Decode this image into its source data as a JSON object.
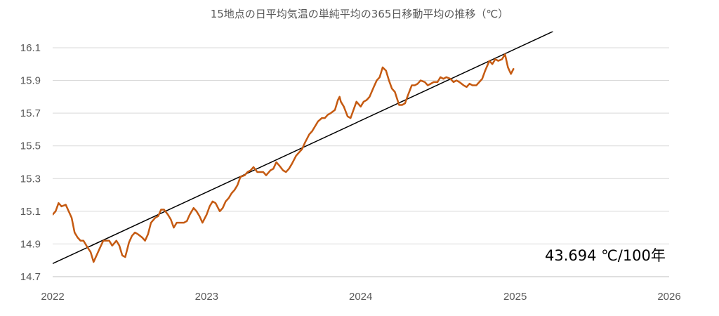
{
  "chart_data": {
    "type": "line",
    "title": "15地点の日平均気温の単純平均の365日移動平均の推移（℃）",
    "xlim": [
      "2022-01-01",
      "2026-01-01"
    ],
    "ylim": [
      14.7,
      16.2
    ],
    "x_ticks": [
      "2022",
      "2023",
      "2024",
      "2025",
      "2026"
    ],
    "y_ticks": [
      14.7,
      14.9,
      15.1,
      15.3,
      15.5,
      15.7,
      15.9,
      16.1
    ],
    "grid": true,
    "legend": "none",
    "series": [
      {
        "color": "#C55A11",
        "x": [
          "2022-01-01",
          "2022-01-08",
          "2022-01-15",
          "2022-01-22",
          "2022-02-01",
          "2022-02-08",
          "2022-02-15",
          "2022-02-22",
          "2022-03-01",
          "2022-03-08",
          "2022-03-15",
          "2022-03-22",
          "2022-04-01",
          "2022-04-08",
          "2022-04-15",
          "2022-04-22",
          "2022-05-01",
          "2022-05-08",
          "2022-05-15",
          "2022-05-22",
          "2022-06-01",
          "2022-06-08",
          "2022-06-15",
          "2022-06-22",
          "2022-07-01",
          "2022-07-08",
          "2022-07-15",
          "2022-07-22",
          "2022-08-01",
          "2022-08-08",
          "2022-08-15",
          "2022-08-22",
          "2022-09-01",
          "2022-09-08",
          "2022-09-15",
          "2022-09-22",
          "2022-10-01",
          "2022-10-08",
          "2022-10-15",
          "2022-10-22",
          "2022-11-01",
          "2022-11-08",
          "2022-11-15",
          "2022-11-22",
          "2022-12-01",
          "2022-12-08",
          "2022-12-15",
          "2022-12-22",
          "2023-01-01",
          "2023-01-08",
          "2023-01-15",
          "2023-01-22",
          "2023-02-01",
          "2023-02-08",
          "2023-02-15",
          "2023-02-22",
          "2023-03-01",
          "2023-03-08",
          "2023-03-15",
          "2023-03-22",
          "2023-04-01",
          "2023-04-08",
          "2023-04-15",
          "2023-04-22",
          "2023-05-01",
          "2023-05-08",
          "2023-05-15",
          "2023-05-22",
          "2023-06-01",
          "2023-06-08",
          "2023-06-15",
          "2023-06-22",
          "2023-07-01",
          "2023-07-08",
          "2023-07-15",
          "2023-07-22",
          "2023-08-01",
          "2023-08-08",
          "2023-08-15",
          "2023-08-22",
          "2023-09-01",
          "2023-09-08",
          "2023-09-15",
          "2023-09-22",
          "2023-10-01",
          "2023-10-08",
          "2023-10-15",
          "2023-10-22",
          "2023-11-01",
          "2023-11-08",
          "2023-11-12",
          "2023-11-15",
          "2023-11-22",
          "2023-12-01",
          "2023-12-08",
          "2023-12-15",
          "2023-12-22",
          "2024-01-01",
          "2024-01-08",
          "2024-01-15",
          "2024-01-22",
          "2024-02-01",
          "2024-02-08",
          "2024-02-15",
          "2024-02-22",
          "2024-03-01",
          "2024-03-08",
          "2024-03-15",
          "2024-03-22",
          "2024-04-01",
          "2024-04-08",
          "2024-04-15",
          "2024-04-22",
          "2024-05-01",
          "2024-05-08",
          "2024-05-15",
          "2024-05-22",
          "2024-06-01",
          "2024-06-08",
          "2024-06-15",
          "2024-06-22",
          "2024-07-01",
          "2024-07-08",
          "2024-07-15",
          "2024-07-22",
          "2024-08-01",
          "2024-08-08",
          "2024-08-15",
          "2024-08-22",
          "2024-09-01",
          "2024-09-08",
          "2024-09-15",
          "2024-09-22",
          "2024-10-01",
          "2024-10-08",
          "2024-10-15",
          "2024-10-22",
          "2024-11-01",
          "2024-11-08",
          "2024-11-15",
          "2024-11-22",
          "2024-12-01",
          "2024-12-08",
          "2024-12-15",
          "2024-12-22",
          "2024-12-28"
        ],
        "y": [
          15.08,
          15.1,
          15.15,
          15.13,
          15.14,
          15.1,
          15.06,
          14.97,
          14.94,
          14.92,
          14.92,
          14.89,
          14.85,
          14.79,
          14.83,
          14.87,
          14.92,
          14.92,
          14.92,
          14.89,
          14.92,
          14.89,
          14.83,
          14.82,
          14.91,
          14.95,
          14.97,
          14.96,
          14.94,
          14.92,
          14.96,
          15.03,
          15.06,
          15.07,
          15.11,
          15.11,
          15.08,
          15.05,
          15.0,
          15.03,
          15.03,
          15.03,
          15.04,
          15.08,
          15.12,
          15.1,
          15.07,
          15.03,
          15.08,
          15.13,
          15.16,
          15.15,
          15.1,
          15.12,
          15.16,
          15.18,
          15.21,
          15.23,
          15.26,
          15.31,
          15.32,
          15.34,
          15.35,
          15.37,
          15.34,
          15.34,
          15.34,
          15.32,
          15.35,
          15.36,
          15.4,
          15.38,
          15.35,
          15.34,
          15.36,
          15.39,
          15.44,
          15.46,
          15.48,
          15.52,
          15.57,
          15.59,
          15.62,
          15.65,
          15.67,
          15.67,
          15.69,
          15.7,
          15.72,
          15.78,
          15.8,
          15.77,
          15.74,
          15.68,
          15.67,
          15.72,
          15.77,
          15.74,
          15.77,
          15.78,
          15.8,
          15.86,
          15.9,
          15.92,
          15.98,
          15.96,
          15.9,
          15.85,
          15.83,
          15.75,
          15.75,
          15.76,
          15.81,
          15.87,
          15.87,
          15.88,
          15.9,
          15.89,
          15.87,
          15.88,
          15.89,
          15.89,
          15.92,
          15.91,
          15.92,
          15.91,
          15.89,
          15.9,
          15.89,
          15.87,
          15.86,
          15.88,
          15.87,
          15.87,
          15.89,
          15.91,
          15.96,
          16.02,
          16.0,
          16.03,
          16.02,
          16.03,
          16.06,
          15.98,
          15.94,
          15.97
        ]
      }
    ],
    "trendline": {
      "color": "#000000",
      "x": [
        "2022-01-01",
        "2025-04-01"
      ],
      "y": [
        14.78,
        16.2
      ]
    },
    "annotations": [
      {
        "text": "43.694 ℃/100年"
      }
    ]
  }
}
